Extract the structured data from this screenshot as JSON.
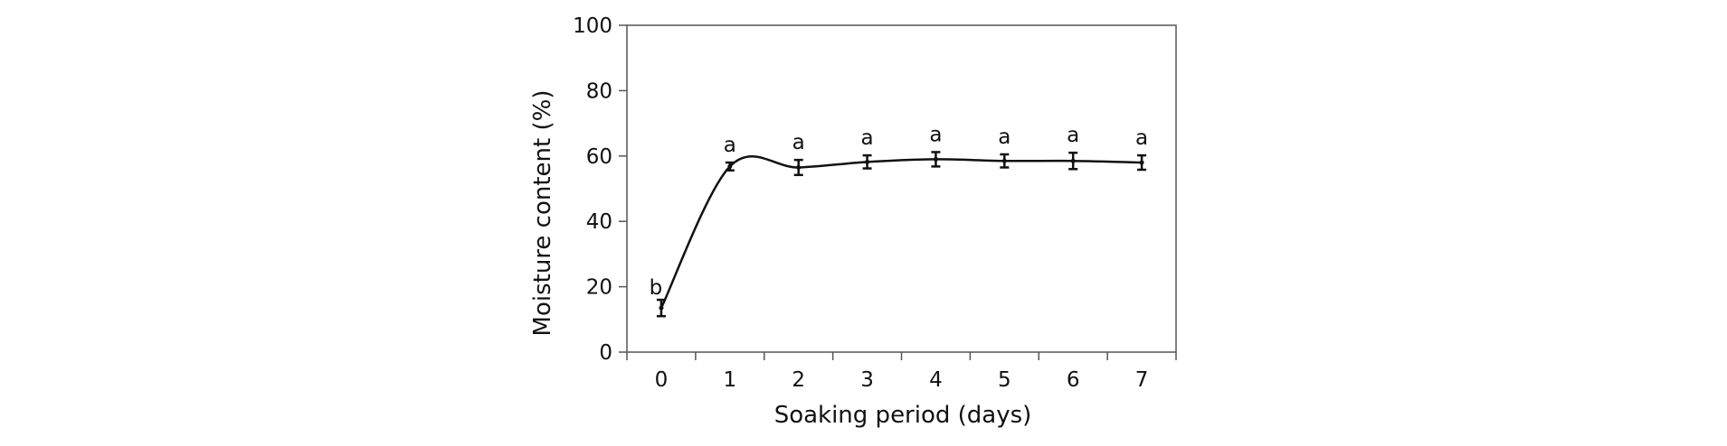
{
  "chart_data": {
    "type": "line",
    "title": "",
    "xlabel": "Soaking period (days)",
    "ylabel": "Moisture content (%)",
    "x": [
      0,
      1,
      2,
      3,
      4,
      5,
      6,
      7
    ],
    "xticks": [
      "0",
      "1",
      "2",
      "3",
      "4",
      "5",
      "6",
      "7"
    ],
    "yticks": [
      "0",
      "20",
      "40",
      "60",
      "80",
      "100"
    ],
    "xlim": [
      -0.5,
      7.5
    ],
    "ylim": [
      0,
      100
    ],
    "grid": false,
    "smoothed": true,
    "series": [
      {
        "values": [
          13.5,
          56.8,
          56.5,
          58.2,
          59.0,
          58.5,
          58.5,
          58.0
        ],
        "errors": [
          2.5,
          1.2,
          2.3,
          2.0,
          2.2,
          2.0,
          2.5,
          2.2
        ],
        "letters": [
          "b",
          "a",
          "a",
          "a",
          "a",
          "a",
          "a",
          "a"
        ],
        "color": "#111111"
      }
    ]
  }
}
